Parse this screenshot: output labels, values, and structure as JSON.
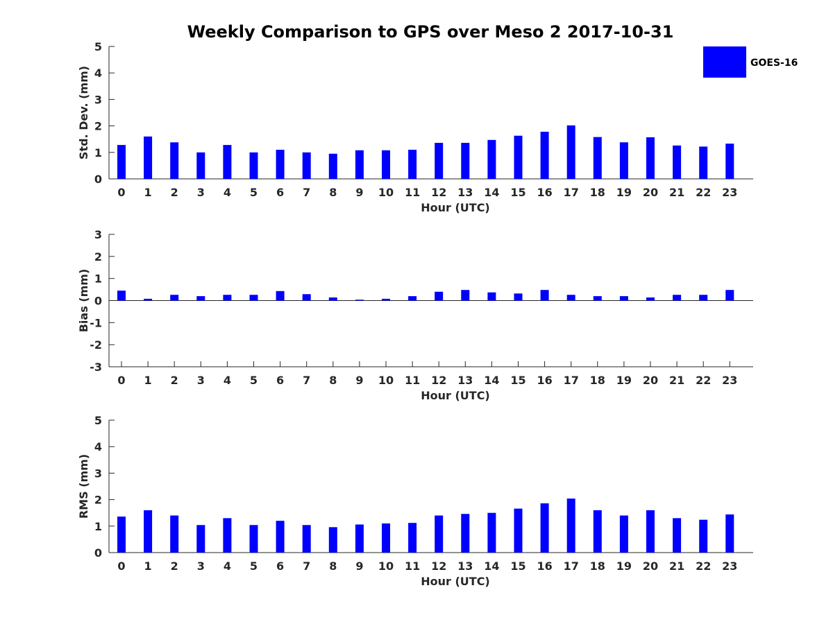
{
  "title": "Weekly Comparison to GPS over Meso 2 2017-10-31",
  "legend": {
    "label": "GOES-16",
    "color": "#0000ff"
  },
  "colors": {
    "bar": "#0000ff",
    "axis": "#262626"
  },
  "chart_data": [
    {
      "type": "bar",
      "name": "std-dev",
      "xlabel": "Hour (UTC)",
      "ylabel": "Std. Dev. (mm)",
      "ylim": [
        0,
        5
      ],
      "yticks": [
        0,
        1,
        2,
        3,
        4,
        5
      ],
      "categories": [
        "0",
        "1",
        "2",
        "3",
        "4",
        "5",
        "6",
        "7",
        "8",
        "9",
        "10",
        "11",
        "12",
        "13",
        "14",
        "15",
        "16",
        "17",
        "18",
        "19",
        "20",
        "21",
        "22",
        "23"
      ],
      "series": [
        {
          "name": "GOES-16",
          "values": [
            1.28,
            1.6,
            1.38,
            1.0,
            1.28,
            1.0,
            1.1,
            1.0,
            0.95,
            1.08,
            1.08,
            1.1,
            1.36,
            1.36,
            1.47,
            1.63,
            1.78,
            2.02,
            1.58,
            1.38,
            1.57,
            1.26,
            1.22,
            1.33
          ]
        }
      ]
    },
    {
      "type": "bar",
      "name": "bias",
      "xlabel": "Hour (UTC)",
      "ylabel": "Bias (mm)",
      "ylim": [
        -3,
        3
      ],
      "yticks": [
        -3,
        -2,
        -1,
        0,
        1,
        2,
        3
      ],
      "zero_line": true,
      "categories": [
        "0",
        "1",
        "2",
        "3",
        "4",
        "5",
        "6",
        "7",
        "8",
        "9",
        "10",
        "11",
        "12",
        "13",
        "14",
        "15",
        "16",
        "17",
        "18",
        "19",
        "20",
        "21",
        "22",
        "23"
      ],
      "series": [
        {
          "name": "GOES-16",
          "values": [
            0.45,
            0.08,
            0.26,
            0.2,
            0.26,
            0.26,
            0.43,
            0.29,
            0.14,
            0.04,
            0.08,
            0.2,
            0.4,
            0.48,
            0.37,
            0.32,
            0.48,
            0.26,
            0.2,
            0.2,
            0.14,
            0.26,
            0.26,
            0.48
          ]
        }
      ]
    },
    {
      "type": "bar",
      "name": "rms",
      "xlabel": "Hour (UTC)",
      "ylabel": "RMS (mm)",
      "ylim": [
        0,
        5
      ],
      "yticks": [
        0,
        1,
        2,
        3,
        4,
        5
      ],
      "categories": [
        "0",
        "1",
        "2",
        "3",
        "4",
        "5",
        "6",
        "7",
        "8",
        "9",
        "10",
        "11",
        "12",
        "13",
        "14",
        "15",
        "16",
        "17",
        "18",
        "19",
        "20",
        "21",
        "22",
        "23"
      ],
      "series": [
        {
          "name": "GOES-16",
          "values": [
            1.36,
            1.6,
            1.4,
            1.04,
            1.3,
            1.04,
            1.2,
            1.04,
            0.96,
            1.06,
            1.1,
            1.12,
            1.4,
            1.46,
            1.5,
            1.66,
            1.86,
            2.04,
            1.6,
            1.4,
            1.6,
            1.3,
            1.24,
            1.44
          ]
        }
      ]
    }
  ]
}
